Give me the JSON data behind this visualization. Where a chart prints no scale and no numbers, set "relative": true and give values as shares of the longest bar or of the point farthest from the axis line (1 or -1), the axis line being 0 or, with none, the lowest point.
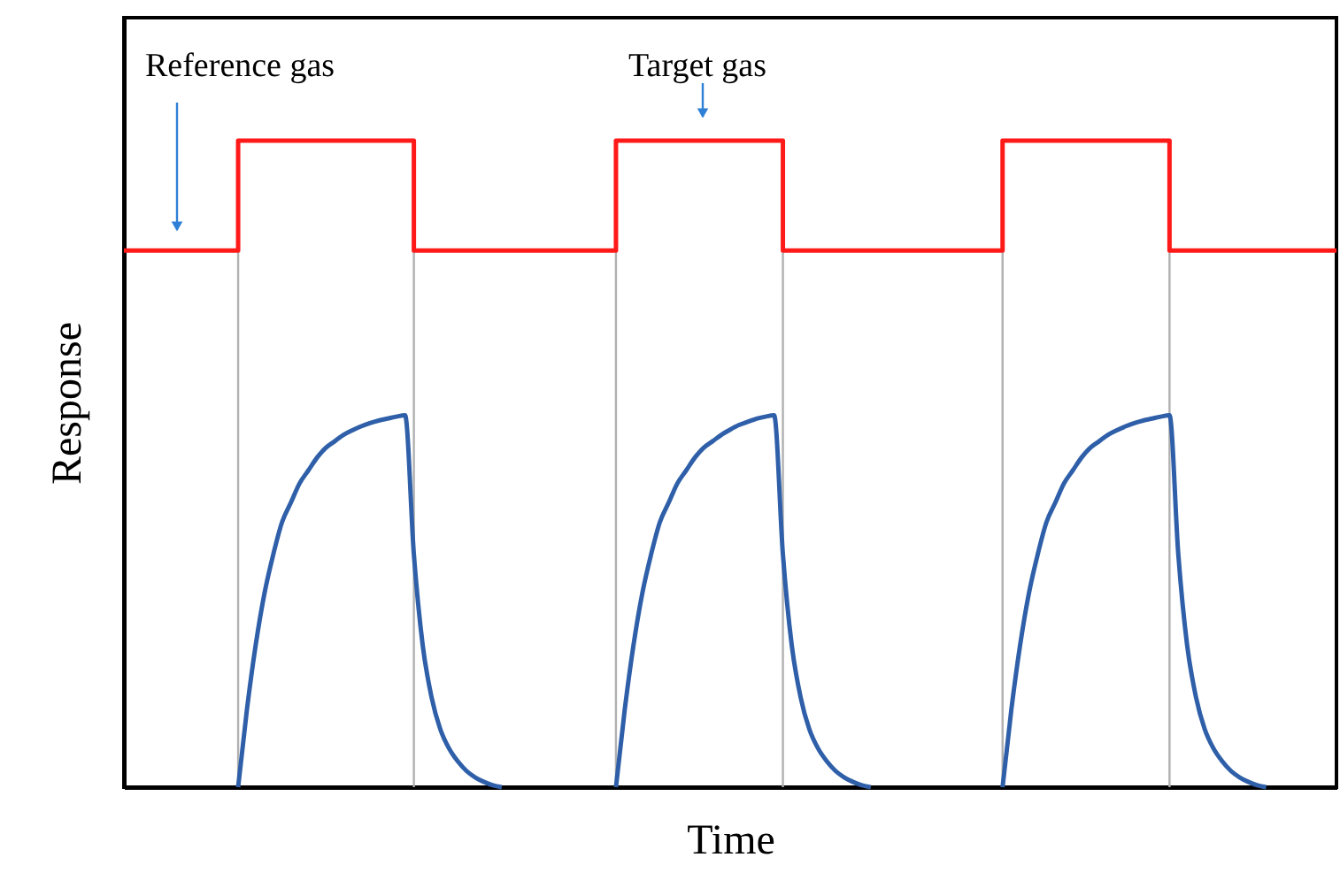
{
  "chart_data": {
    "type": "line",
    "relative": true,
    "xlabel": "Time",
    "ylabel": "Response",
    "tick_labels": false,
    "grid": false,
    "line_style": "solid",
    "marker": "none",
    "categories": [
      null,
      null,
      null,
      null,
      null,
      null,
      null,
      null,
      null,
      null,
      null,
      null,
      null,
      null,
      null,
      null,
      null,
      null,
      null,
      null,
      null,
      null,
      null,
      null,
      null,
      null,
      null,
      null,
      null,
      null,
      null,
      null,
      null,
      null,
      null,
      null,
      null,
      null,
      null,
      null,
      null,
      null,
      null,
      null,
      null,
      null,
      null,
      null,
      null,
      null,
      null,
      null,
      null,
      null,
      null,
      null,
      null,
      null,
      null,
      null,
      null,
      null,
      null,
      null,
      null,
      null,
      null,
      null,
      null,
      null,
      null,
      null,
      null,
      null,
      null,
      null,
      null,
      null,
      null,
      null,
      null,
      null,
      null,
      null,
      null,
      null,
      null,
      null,
      null,
      null,
      null,
      null,
      null,
      null,
      null,
      null,
      null,
      null,
      null,
      null,
      null,
      null,
      null,
      null,
      null,
      null,
      null,
      null,
      null,
      null,
      null,
      null,
      null,
      null,
      null,
      null,
      null,
      null,
      null,
      null,
      null,
      null,
      null,
      null,
      null,
      null,
      null,
      null,
      null,
      null,
      null,
      null,
      null,
      null,
      null,
      null,
      null,
      null,
      null
    ],
    "series": [
      {
        "type": "step",
        "color": "#ff1a1a",
        "values": [
          0.83,
          0.83,
          0.83,
          0.83,
          0.83,
          0.83,
          0.83,
          0.83,
          0.83,
          0.83,
          0.83,
          0.83,
          0.83,
          1,
          1,
          1,
          1,
          1,
          1,
          1,
          1,
          1,
          1,
          1,
          1,
          1,
          1,
          1,
          1,
          1,
          1,
          1,
          1,
          0.83,
          0.83,
          0.83,
          0.83,
          0.83,
          0.83,
          0.83,
          0.83,
          0.83,
          0.83,
          0.83,
          0.83,
          0.83,
          0.83,
          0.83,
          0.83,
          0.83,
          0.83,
          0.83,
          0.83,
          0.83,
          0.83,
          0.83,
          1,
          1,
          1,
          1,
          1,
          1,
          1,
          1,
          1,
          1,
          1,
          1,
          1,
          1,
          1,
          1,
          1,
          1,
          1,
          0.83,
          0.83,
          0.83,
          0.83,
          0.83,
          0.83,
          0.83,
          0.83,
          0.83,
          0.83,
          0.83,
          0.83,
          0.83,
          0.83,
          0.83,
          0.83,
          0.83,
          0.83,
          0.83,
          0.83,
          0.83,
          0.83,
          0.83,
          0.83,
          0.83,
          1,
          1,
          1,
          1,
          1,
          1,
          1,
          1,
          1,
          1,
          1,
          1,
          1,
          1,
          1,
          1,
          1,
          1,
          1,
          0.83,
          0.83,
          0.83,
          0.83,
          0.83,
          0.83,
          0.83,
          0.83,
          0.83,
          0.83,
          0.83,
          0.83,
          0.83,
          0.83,
          0.83,
          0.83,
          0.83,
          0.83,
          0.83,
          0.83
        ]
      },
      {
        "color": "#2e5fa8",
        "values": [
          null,
          null,
          null,
          null,
          null,
          null,
          null,
          null,
          null,
          null,
          null,
          null,
          null,
          0,
          0.12,
          0.22,
          0.3,
          0.36,
          0.41,
          0.44,
          0.47,
          0.49,
          0.51,
          0.525,
          0.535,
          0.545,
          0.552,
          0.558,
          0.563,
          0.567,
          0.57,
          0.573,
          0.575,
          0.36,
          0.22,
          0.14,
          0.09,
          0.06,
          0.04,
          0.025,
          0.015,
          0.008,
          0.003,
          0,
          null,
          null,
          null,
          null,
          null,
          null,
          null,
          null,
          null,
          null,
          null,
          null,
          0,
          0.12,
          0.22,
          0.3,
          0.36,
          0.41,
          0.44,
          0.47,
          0.49,
          0.51,
          0.525,
          0.535,
          0.545,
          0.553,
          0.56,
          0.565,
          0.57,
          0.573,
          0.575,
          0.36,
          0.22,
          0.14,
          0.09,
          0.06,
          0.04,
          0.025,
          0.015,
          0.008,
          0.003,
          0,
          null,
          null,
          null,
          null,
          null,
          null,
          null,
          null,
          null,
          null,
          null,
          null,
          null,
          null,
          0,
          0.12,
          0.22,
          0.3,
          0.36,
          0.41,
          0.44,
          0.47,
          0.49,
          0.51,
          0.525,
          0.535,
          0.545,
          0.552,
          0.558,
          0.563,
          0.567,
          0.57,
          0.573,
          0.575,
          0.36,
          0.22,
          0.14,
          0.09,
          0.06,
          0.04,
          0.025,
          0.015,
          0.008,
          0.003,
          0,
          null,
          null,
          null,
          null,
          null,
          null,
          null,
          null
        ]
      }
    ],
    "annotations": [
      "Reference gas",
      "Target gas"
    ]
  }
}
